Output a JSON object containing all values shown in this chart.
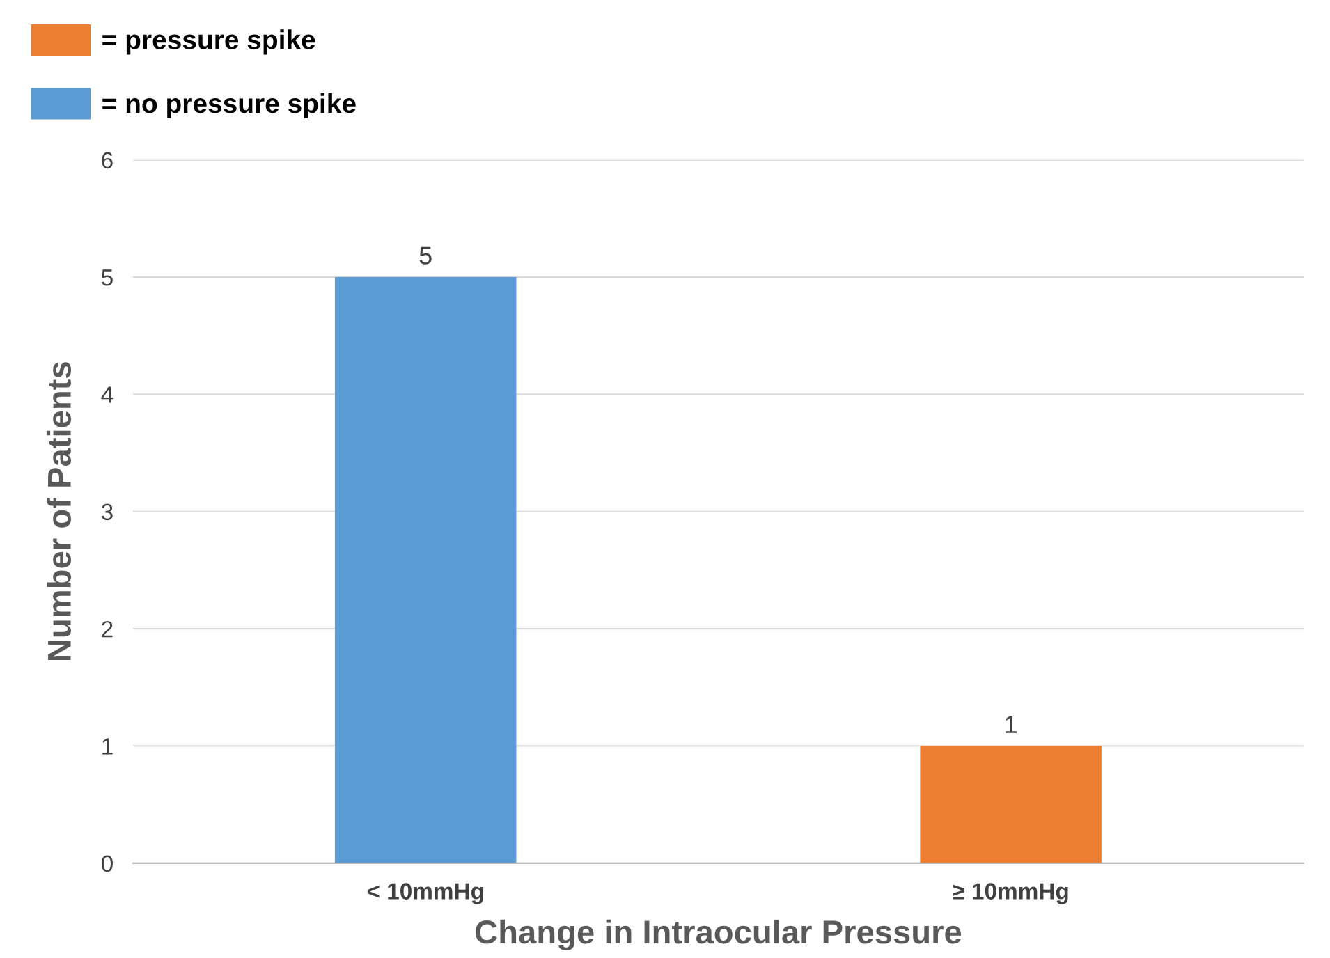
{
  "chart_data": {
    "type": "bar",
    "xlabel": "Change in Intraocular Pressure",
    "ylabel": "Number of Patients",
    "categories": [
      "< 10mmHg",
      "≥ 10mmHg"
    ],
    "series": [
      {
        "name": "= no pressure spike",
        "color": "#5b9bd5",
        "values": [
          5,
          null
        ]
      },
      {
        "name": "= pressure spike",
        "color": "#ed7d31",
        "values": [
          null,
          1
        ]
      }
    ],
    "stacked": true,
    "ylim": [
      0,
      6
    ],
    "yticks": [
      0,
      1,
      2,
      3,
      4,
      5,
      6
    ],
    "grid": "y",
    "legend": "top left",
    "data_labels": true
  }
}
